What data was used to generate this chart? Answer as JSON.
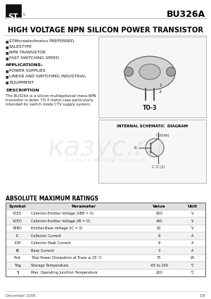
{
  "part_number": "BU326A",
  "title": "HIGH VOLTAGE NPN SILICON POWER TRANSISTOR",
  "features": [
    "STMicroelectronics PREFERRED",
    "SALESTYPE",
    "NPN TRANSISTOR",
    "FAST SWITCHING SPEED"
  ],
  "applications_title": "APPLICATIONS:",
  "applications": [
    "POWER SUPPLIES",
    "LINEAR AND SWITCHING INDUSTRIAL",
    "EQUIPMENT"
  ],
  "description_title": "DESCRIPTION",
  "description_lines": [
    "The BU326A is a silicon multiepitaxial mesa NPN",
    "transistor in Jedec TO-3 metal case particularly",
    "intended for switch mode CTV supply system."
  ],
  "package": "TO-3",
  "internal_schematic_title": "INTERNAL SCHEMATIC  DIAGRAM",
  "abs_max_title": "ABSOLUTE MAXIMUM RATINGS",
  "table_headers": [
    "Symbol",
    "Parameter",
    "Value",
    "Unit"
  ],
  "table_rows": [
    [
      "VCES",
      "Collector-Emitter Voltage (VBE = 0)",
      "800",
      "V"
    ],
    [
      "VCEO",
      "Collector-Emitter Voltage (IB = 0)",
      "450",
      "V"
    ],
    [
      "VEBO",
      "Emitter-Base Voltage (IC = 0)",
      "10",
      "V"
    ],
    [
      "IC",
      "Collector Current",
      "8",
      "A"
    ],
    [
      "ICM",
      "Collector Peak Current",
      "8",
      "A"
    ],
    [
      "IB",
      "Base Current",
      "3",
      "A"
    ],
    [
      "Ptot",
      "Total Power Dissipation at Tcase ≤ 25 °C",
      "75",
      "W"
    ],
    [
      "Tstg",
      "Storage Temperature",
      "-65 to 200",
      "°C"
    ],
    [
      "Tj",
      "Max. Operating Junction Temperature",
      "200",
      "°C"
    ]
  ],
  "footer_left": "December 2006",
  "footer_right": "1/8",
  "bg_color": "#ffffff",
  "watermark_text": "казус.ru",
  "watermark_portal": "Э Л Е К Т Р О Н Н Ы Й   П О Р Т А Л"
}
